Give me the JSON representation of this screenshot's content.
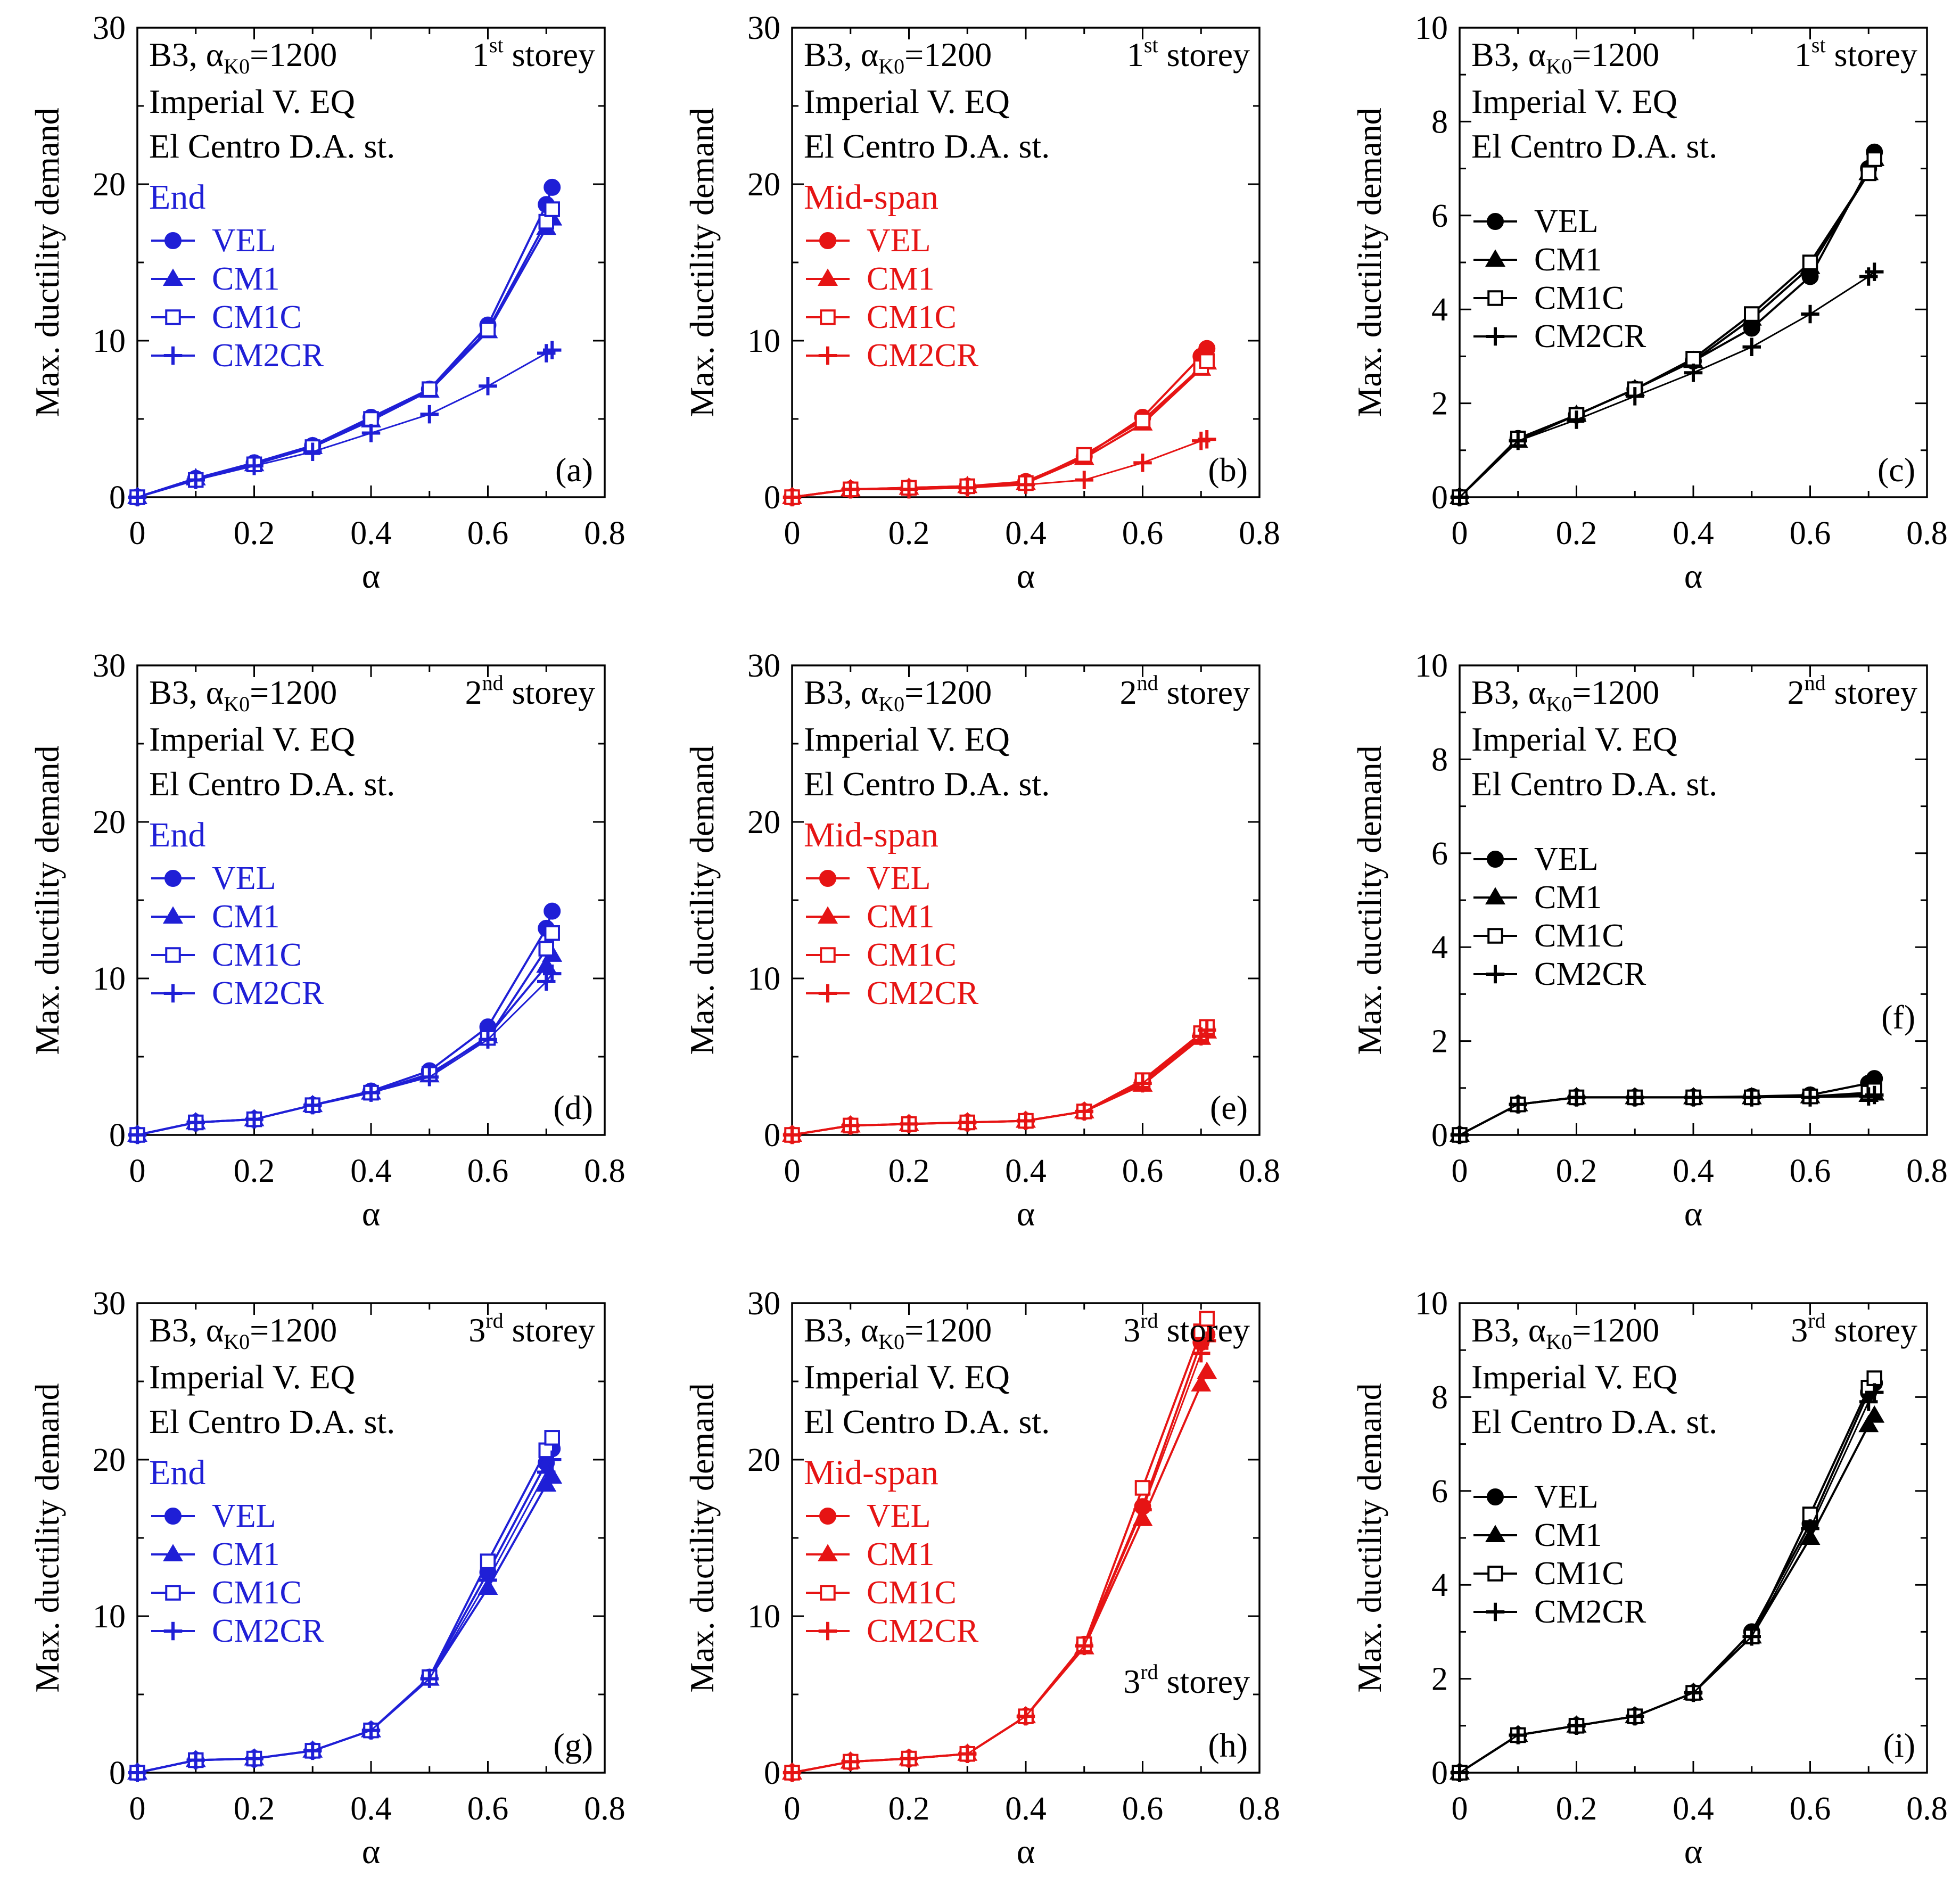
{
  "figure": {
    "description_label": "Max. ductility demand vs alpha, B3 frame, Imperial V. EQ, El Centro D.A. st."
  },
  "chart_data": [
    {
      "type": "line",
      "panel": "(a)",
      "color": "#1f1fd6",
      "title_left": "B3, α",
      "title_sub": "K0",
      "title_eq": "=1200",
      "storey_num": "1",
      "storey_sup": "st",
      "storey_word": "storey",
      "info_line1": "Imperial V. EQ",
      "info_line2": "El Centro D.A. st.",
      "legend_title": "End",
      "xlabel": "α",
      "ylabel": "Max. ductility demand",
      "xlim": [
        0,
        0.8
      ],
      "ylim": [
        0,
        30
      ],
      "xticks": [
        "0",
        "0.2",
        "0.4",
        "0.6",
        "0.8"
      ],
      "yticks": [
        "0",
        "10",
        "20",
        "30"
      ],
      "x": [
        0,
        0.1,
        0.2,
        0.3,
        0.4,
        0.5,
        0.6,
        0.7,
        0.71
      ],
      "series": [
        {
          "name": "VEL",
          "marker": "circle",
          "values": [
            0,
            1.2,
            2.2,
            3.3,
            5.1,
            6.9,
            11.0,
            18.7,
            19.8
          ]
        },
        {
          "name": "CM1",
          "marker": "triangle",
          "values": [
            0,
            1.2,
            2.1,
            3.2,
            4.9,
            6.8,
            10.6,
            17.2,
            17.8
          ]
        },
        {
          "name": "CM1C",
          "marker": "square",
          "values": [
            0,
            1.1,
            2.1,
            3.2,
            5.0,
            6.9,
            10.7,
            17.6,
            18.4
          ]
        },
        {
          "name": "CM2CR",
          "marker": "plus",
          "values": [
            0,
            1.1,
            2.0,
            2.9,
            4.1,
            5.3,
            7.1,
            9.2,
            9.4
          ]
        }
      ]
    },
    {
      "type": "line",
      "panel": "(b)",
      "color": "#e61414",
      "title_left": "B3, α",
      "title_sub": "K0",
      "title_eq": "=1200",
      "storey_num": "1",
      "storey_sup": "st",
      "storey_word": "storey",
      "info_line1": "Imperial V. EQ",
      "info_line2": "El Centro D.A. st.",
      "legend_title": "Mid-span",
      "xlabel": "α",
      "ylabel": "Max. ductility demand",
      "xlim": [
        0,
        0.8
      ],
      "ylim": [
        0,
        30
      ],
      "xticks": [
        "0",
        "0.2",
        "0.4",
        "0.6",
        "0.8"
      ],
      "yticks": [
        "0",
        "10",
        "20",
        "30"
      ],
      "x": [
        0,
        0.1,
        0.2,
        0.3,
        0.4,
        0.5,
        0.6,
        0.7,
        0.71
      ],
      "series": [
        {
          "name": "VEL",
          "marker": "circle",
          "values": [
            0,
            0.5,
            0.6,
            0.7,
            1.0,
            2.6,
            5.1,
            9.0,
            9.5
          ]
        },
        {
          "name": "CM1",
          "marker": "triangle",
          "values": [
            0,
            0.5,
            0.6,
            0.7,
            0.9,
            2.5,
            4.7,
            8.2,
            8.6
          ]
        },
        {
          "name": "CM1C",
          "marker": "square",
          "values": [
            0,
            0.5,
            0.6,
            0.7,
            0.9,
            2.7,
            4.9,
            8.3,
            8.7
          ]
        },
        {
          "name": "CM2CR",
          "marker": "plus",
          "values": [
            0,
            0.5,
            0.5,
            0.6,
            0.8,
            1.1,
            2.2,
            3.6,
            3.7
          ]
        }
      ]
    },
    {
      "type": "line",
      "panel": "(c)",
      "color": "#000000",
      "title_left": "B3, α",
      "title_sub": "K0",
      "title_eq": "=1200",
      "storey_num": "1",
      "storey_sup": "st",
      "storey_word": "storey",
      "info_line1": "Imperial V. EQ",
      "info_line2": "El Centro D.A. st.",
      "legend_title": "",
      "xlabel": "α",
      "ylabel": "Max. ductility demand",
      "xlim": [
        0,
        0.8
      ],
      "ylim": [
        0,
        10
      ],
      "xticks": [
        "0",
        "0.2",
        "0.4",
        "0.6",
        "0.8"
      ],
      "yticks": [
        "0",
        "2",
        "4",
        "6",
        "8",
        "10"
      ],
      "x": [
        0,
        0.1,
        0.2,
        0.3,
        0.4,
        0.5,
        0.6,
        0.7,
        0.71
      ],
      "series": [
        {
          "name": "VEL",
          "marker": "circle",
          "values": [
            0,
            1.25,
            1.75,
            2.3,
            2.9,
            3.6,
            4.7,
            7.0,
            7.35
          ]
        },
        {
          "name": "CM1",
          "marker": "triangle",
          "values": [
            0,
            1.2,
            1.75,
            2.3,
            2.9,
            3.8,
            4.9,
            6.9,
            7.2
          ]
        },
        {
          "name": "CM1C",
          "marker": "square",
          "values": [
            0,
            1.25,
            1.75,
            2.3,
            2.95,
            3.9,
            5.0,
            6.9,
            7.2
          ]
        },
        {
          "name": "CM2CR",
          "marker": "plus",
          "values": [
            0,
            1.2,
            1.65,
            2.15,
            2.65,
            3.2,
            3.9,
            4.7,
            4.8
          ]
        }
      ]
    },
    {
      "type": "line",
      "panel": "(d)",
      "color": "#1f1fd6",
      "title_left": "B3, α",
      "title_sub": "K0",
      "title_eq": "=1200",
      "storey_num": "2",
      "storey_sup": "nd",
      "storey_word": "storey",
      "info_line1": "Imperial V. EQ",
      "info_line2": "El Centro D.A. st.",
      "legend_title": "End",
      "xlabel": "α",
      "ylabel": "Max. ductility demand",
      "xlim": [
        0,
        0.8
      ],
      "ylim": [
        0,
        30
      ],
      "xticks": [
        "0",
        "0.2",
        "0.4",
        "0.6",
        "0.8"
      ],
      "yticks": [
        "0",
        "10",
        "20",
        "30"
      ],
      "x": [
        0,
        0.1,
        0.2,
        0.3,
        0.4,
        0.5,
        0.6,
        0.7,
        0.71
      ],
      "series": [
        {
          "name": "VEL",
          "marker": "circle",
          "values": [
            0,
            0.8,
            1.0,
            1.9,
            2.8,
            4.1,
            6.9,
            13.2,
            14.3
          ]
        },
        {
          "name": "CM1",
          "marker": "triangle",
          "values": [
            0,
            0.8,
            1.0,
            1.9,
            2.7,
            3.8,
            6.3,
            10.8,
            11.5
          ]
        },
        {
          "name": "CM1C",
          "marker": "square",
          "values": [
            0,
            0.8,
            1.0,
            1.9,
            2.7,
            3.9,
            6.2,
            11.9,
            12.9
          ]
        },
        {
          "name": "CM2CR",
          "marker": "plus",
          "values": [
            0,
            0.8,
            1.0,
            1.9,
            2.7,
            3.7,
            6.1,
            9.8,
            10.3
          ]
        }
      ]
    },
    {
      "type": "line",
      "panel": "(e)",
      "color": "#e61414",
      "title_left": "B3, α",
      "title_sub": "K0",
      "title_eq": "=1200",
      "storey_num": "2",
      "storey_sup": "nd",
      "storey_word": "storey",
      "info_line1": "Imperial V. EQ",
      "info_line2": "El Centro D.A. st.",
      "legend_title": "Mid-span",
      "xlabel": "α",
      "ylabel": "Max. ductility demand",
      "xlim": [
        0,
        0.8
      ],
      "ylim": [
        0,
        30
      ],
      "xticks": [
        "0",
        "0.2",
        "0.4",
        "0.6",
        "0.8"
      ],
      "yticks": [
        "0",
        "10",
        "20",
        "30"
      ],
      "x": [
        0,
        0.1,
        0.2,
        0.3,
        0.4,
        0.5,
        0.6,
        0.7,
        0.71
      ],
      "series": [
        {
          "name": "VEL",
          "marker": "circle",
          "values": [
            0,
            0.6,
            0.7,
            0.8,
            0.9,
            1.5,
            3.4,
            6.4,
            6.8
          ]
        },
        {
          "name": "CM1",
          "marker": "triangle",
          "values": [
            0,
            0.6,
            0.7,
            0.8,
            0.9,
            1.5,
            3.2,
            6.2,
            6.6
          ]
        },
        {
          "name": "CM1C",
          "marker": "square",
          "values": [
            0,
            0.6,
            0.7,
            0.8,
            0.9,
            1.5,
            3.5,
            6.5,
            6.9
          ]
        },
        {
          "name": "CM2CR",
          "marker": "plus",
          "values": [
            0,
            0.6,
            0.7,
            0.8,
            0.9,
            1.5,
            3.3,
            6.3,
            6.7
          ]
        }
      ]
    },
    {
      "type": "line",
      "panel": "(f)",
      "color": "#000000",
      "title_left": "B3, α",
      "title_sub": "K0",
      "title_eq": "=1200",
      "storey_num": "2",
      "storey_sup": "nd",
      "storey_word": "storey",
      "info_line1": "Imperial V. EQ",
      "info_line2": "El Centro D.A. st.",
      "legend_title": "",
      "xlabel": "α",
      "ylabel": "Max. ductility demand",
      "xlim": [
        0,
        0.8
      ],
      "ylim": [
        0,
        10
      ],
      "xticks": [
        "0",
        "0.2",
        "0.4",
        "0.6",
        "0.8"
      ],
      "yticks": [
        "0",
        "2",
        "4",
        "6",
        "8",
        "10"
      ],
      "x": [
        0,
        0.1,
        0.2,
        0.3,
        0.4,
        0.5,
        0.6,
        0.7,
        0.71
      ],
      "series": [
        {
          "name": "VEL",
          "marker": "circle",
          "values": [
            0,
            0.65,
            0.8,
            0.8,
            0.8,
            0.82,
            0.85,
            1.1,
            1.2
          ]
        },
        {
          "name": "CM1",
          "marker": "triangle",
          "values": [
            0,
            0.65,
            0.8,
            0.8,
            0.8,
            0.8,
            0.82,
            0.85,
            0.88
          ]
        },
        {
          "name": "CM1C",
          "marker": "square",
          "values": [
            0,
            0.65,
            0.8,
            0.8,
            0.8,
            0.8,
            0.82,
            0.9,
            0.95
          ]
        },
        {
          "name": "CM2CR",
          "marker": "plus",
          "values": [
            0,
            0.65,
            0.8,
            0.8,
            0.8,
            0.8,
            0.8,
            0.82,
            0.85
          ]
        }
      ]
    },
    {
      "type": "line",
      "panel": "(g)",
      "color": "#1f1fd6",
      "title_left": "B3, α",
      "title_sub": "K0",
      "title_eq": "=1200",
      "storey_num": "3",
      "storey_sup": "rd",
      "storey_word": "storey",
      "info_line1": "Imperial V. EQ",
      "info_line2": "El Centro D.A. st.",
      "legend_title": "End",
      "xlabel": "α",
      "ylabel": "Max. ductility demand",
      "xlim": [
        0,
        0.8
      ],
      "ylim": [
        0,
        30
      ],
      "xticks": [
        "0",
        "0.2",
        "0.4",
        "0.6",
        "0.8"
      ],
      "yticks": [
        "0",
        "10",
        "20",
        "30"
      ],
      "x": [
        0,
        0.1,
        0.2,
        0.3,
        0.4,
        0.5,
        0.6,
        0.7,
        0.71
      ],
      "series": [
        {
          "name": "VEL",
          "marker": "circle",
          "values": [
            0,
            0.8,
            0.9,
            1.4,
            2.7,
            6.1,
            12.8,
            19.8,
            20.7
          ]
        },
        {
          "name": "CM1",
          "marker": "triangle",
          "values": [
            0,
            0.8,
            0.9,
            1.4,
            2.7,
            6.0,
            11.8,
            18.4,
            18.9
          ]
        },
        {
          "name": "CM1C",
          "marker": "square",
          "values": [
            0,
            0.8,
            0.9,
            1.4,
            2.7,
            6.1,
            13.5,
            20.6,
            21.4
          ]
        },
        {
          "name": "CM2CR",
          "marker": "plus",
          "values": [
            0,
            0.8,
            0.9,
            1.4,
            2.7,
            6.0,
            12.3,
            19.2,
            20.0
          ]
        }
      ]
    },
    {
      "type": "line",
      "panel": "(h)",
      "color": "#e61414",
      "title_left": "B3, α",
      "title_sub": "K0",
      "title_eq": "=1200",
      "storey_num": "3",
      "storey_sup": "rd",
      "storey_word": "storey",
      "info_line1": "Imperial V. EQ",
      "info_line2": "El Centro D.A. st.",
      "legend_title": "Mid-span",
      "xlabel": "α",
      "ylabel": "Max. ductility demand",
      "xlim": [
        0,
        0.8
      ],
      "ylim": [
        0,
        30
      ],
      "xticks": [
        "0",
        "0.2",
        "0.4",
        "0.6",
        "0.8"
      ],
      "yticks": [
        "0",
        "10",
        "20",
        "30"
      ],
      "x": [
        0,
        0.1,
        0.2,
        0.3,
        0.4,
        0.5,
        0.6,
        0.7,
        0.71
      ],
      "series": [
        {
          "name": "VEL",
          "marker": "circle",
          "values": [
            0,
            0.7,
            0.9,
            1.2,
            3.6,
            8.2,
            17.0,
            27.5,
            28.0
          ]
        },
        {
          "name": "CM1",
          "marker": "triangle",
          "values": [
            0,
            0.7,
            0.9,
            1.2,
            3.6,
            8.0,
            16.2,
            24.8,
            25.6
          ]
        },
        {
          "name": "CM1C",
          "marker": "square",
          "values": [
            0,
            0.7,
            0.9,
            1.2,
            3.6,
            8.2,
            18.2,
            28.2,
            29.0
          ]
        },
        {
          "name": "CM2CR",
          "marker": "plus",
          "values": [
            0,
            0.7,
            0.9,
            1.2,
            3.6,
            8.1,
            16.8,
            26.8,
            27.6
          ]
        }
      ],
      "annotation_num": "3",
      "annotation_sup": "rd",
      "annotation_word": "storey"
    },
    {
      "type": "line",
      "panel": "(i)",
      "color": "#000000",
      "title_left": "B3, α",
      "title_sub": "K0",
      "title_eq": "=1200",
      "storey_num": "3",
      "storey_sup": "rd",
      "storey_word": "storey",
      "info_line1": "Imperial V. EQ",
      "info_line2": "El Centro D.A. st.",
      "legend_title": "",
      "xlabel": "α",
      "ylabel": "Max. ductility demand",
      "xlim": [
        0,
        0.8
      ],
      "ylim": [
        0,
        10
      ],
      "xticks": [
        "0",
        "0.2",
        "0.4",
        "0.6",
        "0.8"
      ],
      "yticks": [
        "0",
        "2",
        "4",
        "6",
        "8",
        "10"
      ],
      "x": [
        0,
        0.1,
        0.2,
        0.3,
        0.4,
        0.5,
        0.6,
        0.7,
        0.71
      ],
      "series": [
        {
          "name": "VEL",
          "marker": "circle",
          "values": [
            0,
            0.8,
            1.0,
            1.2,
            1.7,
            3.0,
            5.3,
            8.1,
            8.3
          ]
        },
        {
          "name": "CM1",
          "marker": "triangle",
          "values": [
            0,
            0.8,
            1.0,
            1.2,
            1.7,
            2.9,
            5.0,
            7.4,
            7.6
          ]
        },
        {
          "name": "CM1C",
          "marker": "square",
          "values": [
            0,
            0.8,
            1.0,
            1.2,
            1.7,
            2.9,
            5.5,
            8.2,
            8.4
          ]
        },
        {
          "name": "CM2CR",
          "marker": "plus",
          "values": [
            0,
            0.8,
            1.0,
            1.2,
            1.7,
            2.9,
            5.2,
            7.9,
            8.1
          ]
        }
      ]
    }
  ]
}
